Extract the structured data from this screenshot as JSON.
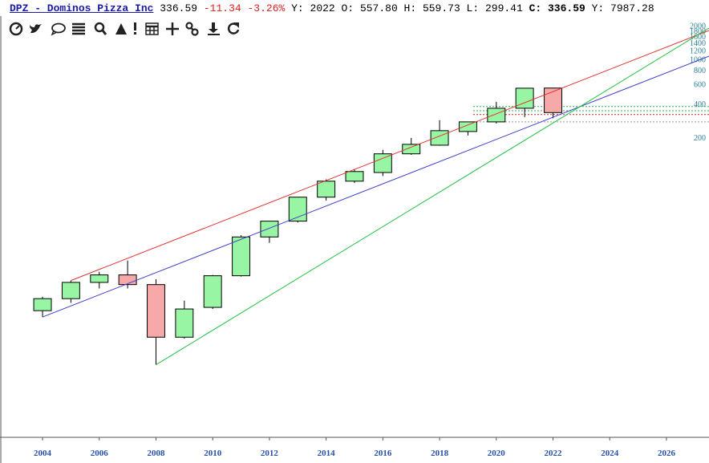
{
  "header": {
    "title": "DPZ - Dominos Pizza Inc",
    "last": "336.59",
    "change": "-11.34",
    "change_pct": "-3.26%",
    "ohlc": "Y: 2022 O: 557.80 H: 559.73 L: 299.41",
    "close": "C: 336.59",
    "extra": "Y: 7987.28"
  },
  "chart_data": {
    "type": "candlestick",
    "log_scale": true,
    "x": [
      2004,
      2005,
      2006,
      2007,
      2008,
      2009,
      2010,
      2011,
      2012,
      2013,
      2014,
      2015,
      2016,
      2017,
      2018,
      2019,
      2020,
      2021,
      2022
    ],
    "open": [
      5.7,
      7.3,
      10.2,
      11.9,
      9.75,
      3.3,
      6.1,
      11.7,
      26,
      36,
      59,
      82,
      98,
      144,
      172,
      228,
      278,
      368,
      557.8
    ],
    "high": [
      7.6,
      10.6,
      12.7,
      16,
      10.9,
      7.0,
      11.9,
      27,
      36,
      59,
      85,
      105,
      156,
      200,
      288,
      278,
      420,
      556,
      559.73
    ],
    "low": [
      5.0,
      6.7,
      9.0,
      9.0,
      1.87,
      3.2,
      5.9,
      11.5,
      23,
      35,
      55,
      79,
      91,
      141,
      170,
      210,
      269,
      307,
      299.41
    ],
    "close": [
      7.3,
      10.2,
      11.9,
      9.75,
      3.3,
      5.9,
      11.7,
      26,
      36,
      59,
      82,
      100,
      144,
      175,
      232,
      278,
      368,
      556,
      336.59
    ],
    "up_color": "#98f5a4",
    "down_color": "#f7a8a8",
    "xlim": [
      2002.5,
      2027.5
    ],
    "xticks": [
      2004,
      2006,
      2008,
      2010,
      2012,
      2014,
      2016,
      2018,
      2020,
      2022,
      2024,
      2026
    ],
    "ylim": [
      0.42,
      2457
    ],
    "yticks": [
      200,
      400,
      600,
      800,
      1000,
      1200,
      1400,
      1600,
      1800,
      2000
    ],
    "trendlines": [
      {
        "color": "#e53030",
        "x": [
          2005,
          2027.5
        ],
        "y": [
          10.6,
          1826
        ]
      },
      {
        "color": "#4040d0",
        "x": [
          2004,
          2027.5
        ],
        "y": [
          5.0,
          1076
        ]
      },
      {
        "color": "#20c040",
        "x": [
          2008,
          2027.5
        ],
        "y": [
          1.87,
          1920
        ]
      }
    ],
    "levels": [
      {
        "color": "#30b050",
        "value": 381
      },
      {
        "color": "#30b050",
        "value": 350
      },
      {
        "color": "#c03030",
        "value": 323
      },
      {
        "color": "#999999",
        "value": 278
      }
    ]
  }
}
